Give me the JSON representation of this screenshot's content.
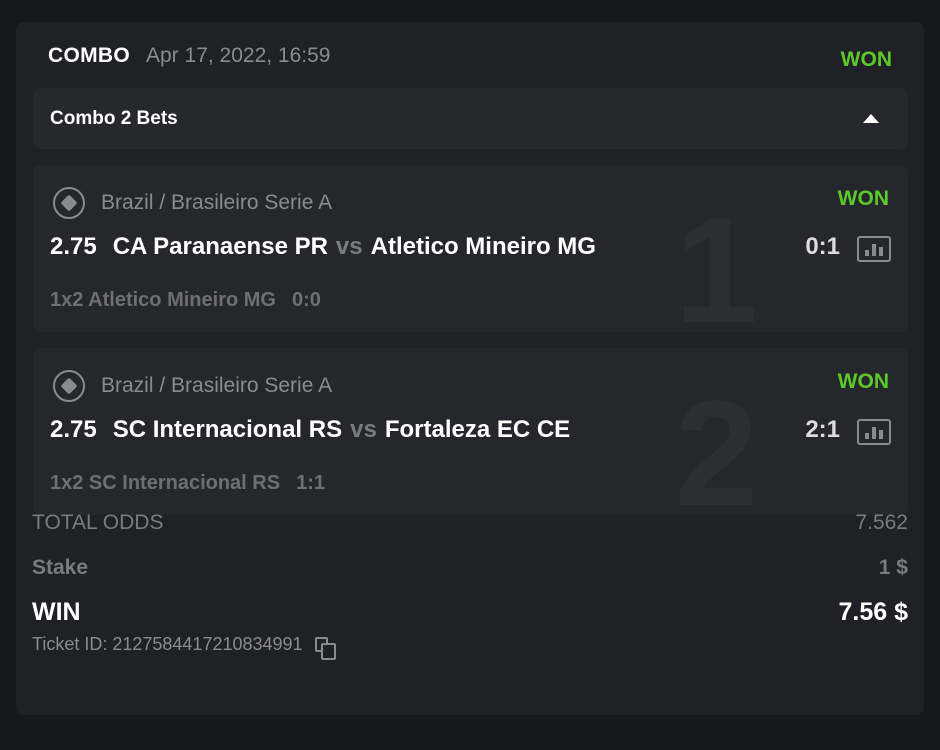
{
  "ticket": {
    "type": "COMBO",
    "date": "Apr 17, 2022, 16:59",
    "status": "WON",
    "status_color": "#5cc92b",
    "combo_label": "Combo 2 Bets",
    "legs": [
      {
        "index": "1",
        "league": "Brazil / Brasileiro Serie A",
        "status": "WON",
        "odds": "2.75",
        "home": "CA Paranaense PR",
        "vs": "vs",
        "away": "Atletico Mineiro MG",
        "score": "0:1",
        "market": "1x2 Atletico Mineiro MG",
        "pick_score": "0:0"
      },
      {
        "index": "2",
        "league": "Brazil / Brasileiro Serie A",
        "status": "WON",
        "odds": "2.75",
        "home": "SC Internacional RS",
        "vs": "vs",
        "away": "Fortaleza EC CE",
        "score": "2:1",
        "market": "1x2 SC Internacional RS",
        "pick_score": "1:1"
      }
    ],
    "total_odds_label": "TOTAL ODDS",
    "total_odds": "7.562",
    "stake_label": "Stake",
    "stake": "1 $",
    "win_label": "WIN",
    "win": "7.56 $",
    "ticket_id": "Ticket ID: 2127584417210834991"
  }
}
